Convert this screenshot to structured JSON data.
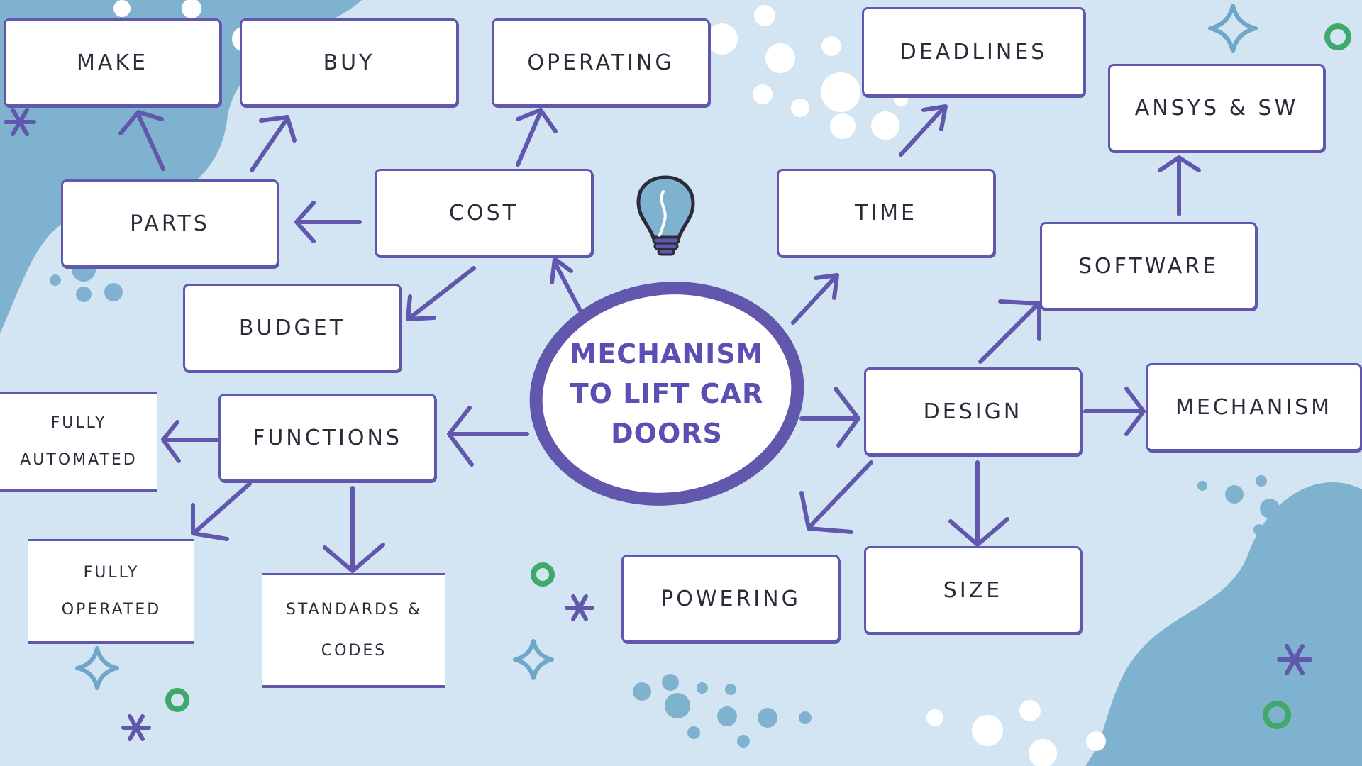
{
  "center": {
    "line1": "MECHANISM",
    "line2": "TO LIFT CAR",
    "line3": "DOORS"
  },
  "nodes": {
    "make": "MAKE",
    "buy": "BUY",
    "operating": "OPERATING",
    "deadlines": "DEADLINES",
    "ansys_sw": "ANSYS & SW",
    "parts": "PARTS",
    "cost": "COST",
    "time": "TIME",
    "software": "SOFTWARE",
    "budget": "BUDGET",
    "functions": "FUNCTIONS",
    "design": "DESIGN",
    "mechanism": "MECHANISM",
    "powering": "POWERING",
    "size": "SIZE",
    "fully_automated": {
      "line1": "FULLY",
      "line2": "AUTOMATED"
    },
    "fully_operated": {
      "line1": "FULLY",
      "line2": "OPERATED"
    },
    "standards_codes": {
      "line1": "STANDARDS &",
      "line2": "CODES"
    }
  },
  "colors": {
    "background": "#d3e5f2",
    "blob": "#7fb2cf",
    "accent": "#6157ad",
    "green": "#3fa86a"
  },
  "icons": [
    "lightbulb-icon",
    "sparkle-icon",
    "asterisk-icon",
    "ring-icon",
    "dot-icon"
  ]
}
